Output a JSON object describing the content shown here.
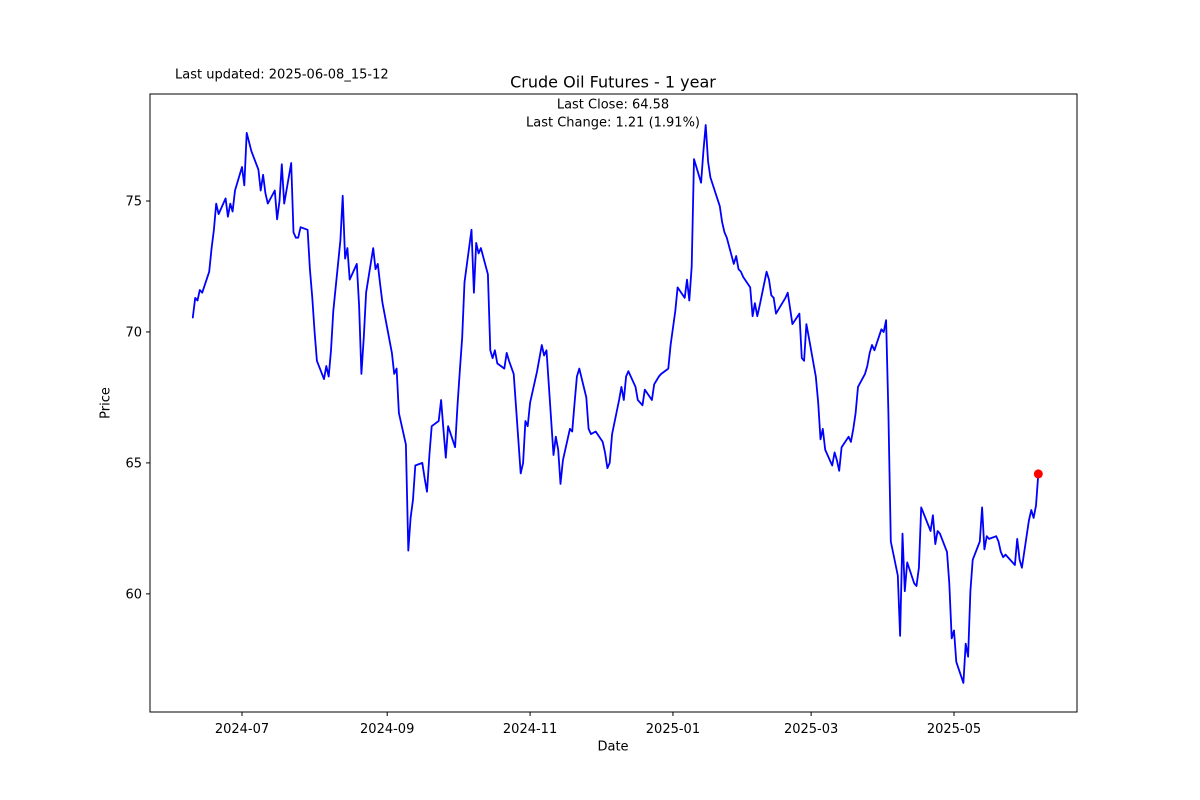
{
  "figure": {
    "title": "Crude Oil Futures - 1 year",
    "last_updated_text": "Last updated: 2025-06-08_15-12",
    "subtitle_line1": "Last Close: 64.58",
    "subtitle_line2": "Last Change: 1.21 (1.91%)",
    "xlabel": "Date",
    "ylabel": "Price"
  },
  "chart_data": {
    "type": "line",
    "title": "Crude Oil Futures - 1 year",
    "xlabel": "Date",
    "ylabel": "Price",
    "legend": "none",
    "grid": false,
    "line_color": "#0000ff",
    "marker_color": "#ff0000",
    "last_close": 64.58,
    "last_change_text": "1.21 (1.91%)",
    "ylim": [
      55.5,
      79.1
    ],
    "x_tick_labels": [
      "2024-07",
      "2024-09",
      "2024-11",
      "2025-01",
      "2025-03",
      "2025-05"
    ],
    "x_tick_dates": [
      "2024-07-01",
      "2024-09-01",
      "2024-11-01",
      "2025-01-01",
      "2025-03-01",
      "2025-05-01"
    ],
    "y_ticks": [
      60,
      65,
      70,
      75
    ],
    "dates": [
      "2024-06-10",
      "2024-06-11",
      "2024-06-12",
      "2024-06-13",
      "2024-06-14",
      "2024-06-17",
      "2024-06-18",
      "2024-06-19",
      "2024-06-20",
      "2024-06-21",
      "2024-06-24",
      "2024-06-25",
      "2024-06-26",
      "2024-06-27",
      "2024-06-28",
      "2024-07-01",
      "2024-07-02",
      "2024-07-03",
      "2024-07-05",
      "2024-07-08",
      "2024-07-09",
      "2024-07-10",
      "2024-07-11",
      "2024-07-12",
      "2024-07-15",
      "2024-07-16",
      "2024-07-17",
      "2024-07-18",
      "2024-07-19",
      "2024-07-22",
      "2024-07-23",
      "2024-07-24",
      "2024-07-25",
      "2024-07-26",
      "2024-07-29",
      "2024-07-30",
      "2024-07-31",
      "2024-08-01",
      "2024-08-02",
      "2024-08-05",
      "2024-08-06",
      "2024-08-07",
      "2024-08-08",
      "2024-08-09",
      "2024-08-12",
      "2024-08-13",
      "2024-08-14",
      "2024-08-15",
      "2024-08-16",
      "2024-08-19",
      "2024-08-20",
      "2024-08-21",
      "2024-08-22",
      "2024-08-23",
      "2024-08-26",
      "2024-08-27",
      "2024-08-28",
      "2024-08-29",
      "2024-08-30",
      "2024-09-03",
      "2024-09-04",
      "2024-09-05",
      "2024-09-06",
      "2024-09-09",
      "2024-09-10",
      "2024-09-11",
      "2024-09-12",
      "2024-09-13",
      "2024-09-16",
      "2024-09-17",
      "2024-09-18",
      "2024-09-19",
      "2024-09-20",
      "2024-09-23",
      "2024-09-24",
      "2024-09-25",
      "2024-09-26",
      "2024-09-27",
      "2024-09-30",
      "2024-10-01",
      "2024-10-02",
      "2024-10-03",
      "2024-10-04",
      "2024-10-07",
      "2024-10-08",
      "2024-10-09",
      "2024-10-10",
      "2024-10-11",
      "2024-10-14",
      "2024-10-15",
      "2024-10-16",
      "2024-10-17",
      "2024-10-18",
      "2024-10-21",
      "2024-10-22",
      "2024-10-23",
      "2024-10-25",
      "2024-10-28",
      "2024-10-29",
      "2024-10-30",
      "2024-10-31",
      "2024-11-01",
      "2024-11-04",
      "2024-11-06",
      "2024-11-07",
      "2024-11-08",
      "2024-11-11",
      "2024-11-12",
      "2024-11-13",
      "2024-11-14",
      "2024-11-15",
      "2024-11-18",
      "2024-11-19",
      "2024-11-20",
      "2024-11-21",
      "2024-11-22",
      "2024-11-25",
      "2024-11-26",
      "2024-11-27",
      "2024-11-29",
      "2024-12-02",
      "2024-12-03",
      "2024-12-04",
      "2024-12-05",
      "2024-12-06",
      "2024-12-09",
      "2024-12-10",
      "2024-12-11",
      "2024-12-12",
      "2024-12-13",
      "2024-12-16",
      "2024-12-17",
      "2024-12-18",
      "2024-12-19",
      "2024-12-20",
      "2024-12-23",
      "2024-12-24",
      "2024-12-26",
      "2024-12-27",
      "2024-12-30",
      "2024-12-31",
      "2025-01-02",
      "2025-01-03",
      "2025-01-06",
      "2025-01-07",
      "2025-01-08",
      "2025-01-09",
      "2025-01-10",
      "2025-01-13",
      "2025-01-14",
      "2025-01-15",
      "2025-01-16",
      "2025-01-17",
      "2025-01-21",
      "2025-01-22",
      "2025-01-23",
      "2025-01-24",
      "2025-01-27",
      "2025-01-28",
      "2025-01-29",
      "2025-01-30",
      "2025-01-31",
      "2025-02-03",
      "2025-02-04",
      "2025-02-05",
      "2025-02-06",
      "2025-02-07",
      "2025-02-10",
      "2025-02-11",
      "2025-02-12",
      "2025-02-13",
      "2025-02-14",
      "2025-02-18",
      "2025-02-19",
      "2025-02-20",
      "2025-02-21",
      "2025-02-24",
      "2025-02-25",
      "2025-02-26",
      "2025-02-27",
      "2025-02-28",
      "2025-03-03",
      "2025-03-04",
      "2025-03-05",
      "2025-03-06",
      "2025-03-07",
      "2025-03-10",
      "2025-03-11",
      "2025-03-12",
      "2025-03-13",
      "2025-03-14",
      "2025-03-17",
      "2025-03-18",
      "2025-03-19",
      "2025-03-20",
      "2025-03-21",
      "2025-03-24",
      "2025-03-25",
      "2025-03-26",
      "2025-03-27",
      "2025-03-28",
      "2025-03-31",
      "2025-04-01",
      "2025-04-02",
      "2025-04-03",
      "2025-04-04",
      "2025-04-07",
      "2025-04-08",
      "2025-04-09",
      "2025-04-10",
      "2025-04-11",
      "2025-04-14",
      "2025-04-15",
      "2025-04-16",
      "2025-04-17",
      "2025-04-21",
      "2025-04-22",
      "2025-04-23",
      "2025-04-24",
      "2025-04-25",
      "2025-04-28",
      "2025-04-29",
      "2025-04-30",
      "2025-05-01",
      "2025-05-02",
      "2025-05-05",
      "2025-05-06",
      "2025-05-07",
      "2025-05-08",
      "2025-05-09",
      "2025-05-12",
      "2025-05-13",
      "2025-05-14",
      "2025-05-15",
      "2025-05-16",
      "2025-05-19",
      "2025-05-20",
      "2025-05-21",
      "2025-05-22",
      "2025-05-23",
      "2025-05-27",
      "2025-05-28",
      "2025-05-29",
      "2025-05-30",
      "2025-06-02",
      "2025-06-03",
      "2025-06-04",
      "2025-06-05",
      "2025-06-06"
    ],
    "values": [
      70.55,
      71.3,
      71.2,
      71.6,
      71.5,
      72.3,
      73.2,
      73.9,
      74.9,
      74.5,
      75.1,
      74.4,
      74.9,
      74.6,
      75.4,
      76.3,
      75.6,
      77.6,
      76.9,
      76.2,
      75.4,
      76.0,
      75.3,
      74.9,
      75.4,
      74.3,
      75.0,
      76.4,
      74.9,
      76.45,
      73.8,
      73.6,
      73.6,
      74.0,
      73.9,
      72.4,
      71.3,
      70.0,
      68.9,
      68.2,
      68.7,
      68.3,
      69.3,
      70.8,
      73.5,
      75.2,
      72.8,
      73.2,
      72.0,
      72.6,
      71.0,
      68.4,
      69.8,
      71.5,
      73.2,
      72.4,
      72.6,
      71.8,
      71.1,
      69.2,
      68.4,
      68.6,
      66.9,
      65.7,
      61.65,
      62.9,
      63.6,
      64.9,
      65.0,
      64.4,
      63.9,
      65.3,
      66.4,
      66.6,
      67.4,
      66.3,
      65.2,
      66.4,
      65.6,
      67.2,
      68.5,
      69.8,
      71.9,
      73.9,
      71.5,
      73.4,
      73.0,
      73.2,
      72.2,
      69.3,
      69.0,
      69.3,
      68.8,
      68.6,
      69.2,
      68.9,
      68.4,
      64.6,
      65.0,
      66.6,
      66.4,
      67.3,
      68.5,
      69.5,
      69.1,
      69.3,
      65.3,
      66.0,
      65.5,
      64.2,
      65.1,
      66.3,
      66.2,
      67.3,
      68.3,
      68.6,
      67.5,
      66.3,
      66.1,
      66.2,
      65.8,
      65.4,
      64.8,
      65.0,
      66.1,
      67.4,
      67.9,
      67.4,
      68.3,
      68.5,
      67.9,
      67.4,
      67.3,
      67.2,
      67.8,
      67.4,
      68.0,
      68.3,
      68.4,
      68.6,
      69.5,
      70.8,
      71.7,
      71.3,
      72.0,
      71.2,
      72.5,
      76.6,
      75.7,
      76.9,
      77.9,
      76.5,
      75.9,
      74.8,
      74.2,
      73.8,
      73.6,
      72.6,
      72.9,
      72.4,
      72.3,
      72.1,
      71.7,
      70.6,
      71.1,
      70.6,
      71.0,
      72.3,
      72.0,
      71.4,
      71.3,
      70.7,
      71.3,
      71.5,
      70.9,
      70.3,
      70.7,
      69.0,
      68.9,
      70.3,
      69.8,
      68.3,
      67.3,
      65.9,
      66.3,
      65.5,
      64.9,
      65.4,
      65.1,
      64.7,
      65.6,
      66.0,
      65.8,
      66.3,
      66.9,
      67.9,
      68.4,
      68.7,
      69.2,
      69.5,
      69.3,
      70.1,
      70.0,
      70.45,
      66.9,
      62.0,
      60.7,
      58.4,
      62.3,
      60.1,
      61.2,
      60.4,
      60.3,
      61.0,
      63.3,
      62.4,
      63.0,
      61.9,
      62.4,
      62.3,
      61.6,
      60.4,
      58.3,
      58.6,
      57.4,
      56.6,
      58.1,
      57.6,
      60.1,
      61.3,
      62.0,
      63.3,
      61.7,
      62.2,
      62.1,
      62.2,
      62.0,
      61.6,
      61.4,
      61.5,
      61.1,
      62.1,
      61.3,
      61.0,
      62.8,
      63.2,
      62.9,
      63.37,
      64.58
    ]
  }
}
